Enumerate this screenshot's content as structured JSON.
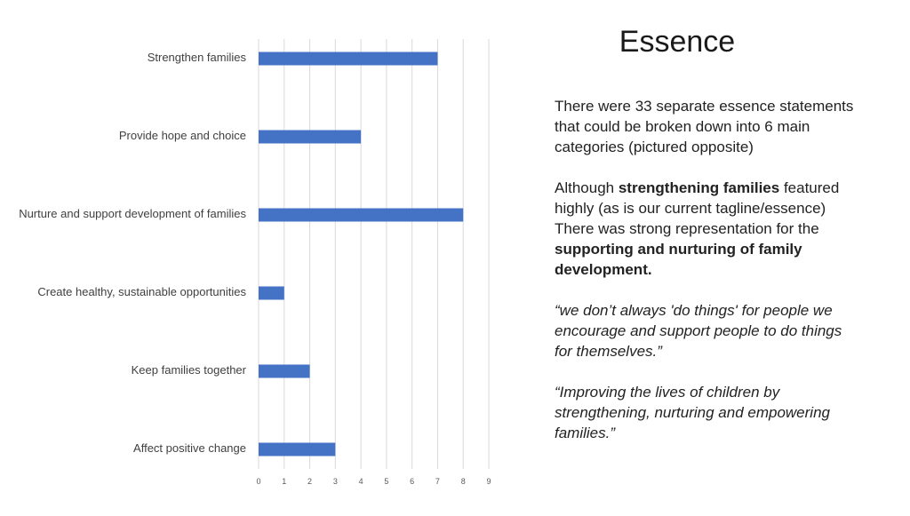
{
  "title": "Essence",
  "paragraphs": {
    "p1": "There were 33 separate essence statements that could be broken down into 6 main categories (pictured opposite)",
    "p2_before": "Although ",
    "p2_bold1": "strengthening families",
    "p2_middle": " featured highly (as is our current tagline/essence) There was strong representation for the ",
    "p2_bold2": "supporting and nurturing of family development.",
    "quote1": "“we don’t always 'do things' for people we encourage and support people to do things for themselves.”",
    "quote2": "“Improving the lives of children by strengthening, nurturing and empowering families.”"
  },
  "colors": {
    "bar": "#4472c4",
    "grid": "#d9d9d9"
  },
  "chart_data": {
    "type": "bar",
    "orientation": "horizontal",
    "categories": [
      "Strengthen families",
      "Provide hope and choice",
      "Nurture and support development of families",
      "Create healthy, sustainable opportunities",
      "Keep families together",
      "Affect positive change"
    ],
    "values": [
      7,
      4,
      8,
      1,
      2,
      3
    ],
    "xlim": [
      0,
      9
    ],
    "xticks": [
      "0",
      "1",
      "2",
      "3",
      "4",
      "5",
      "6",
      "7",
      "8",
      "9"
    ],
    "grid": true,
    "legend": "none"
  }
}
